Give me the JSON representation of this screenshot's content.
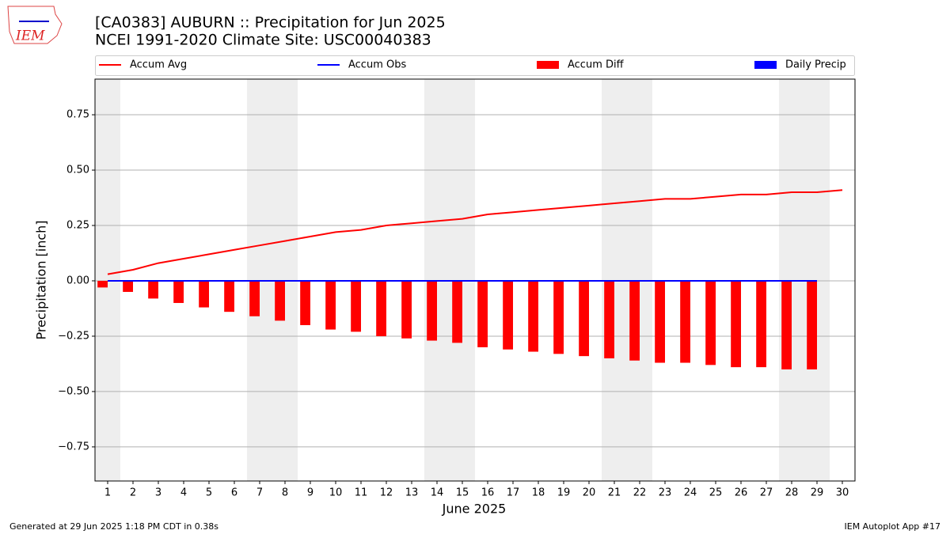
{
  "logo_text": "IEM",
  "footer_left": "Generated at 29 Jun 2025 1:18 PM CDT in 0.38s",
  "footer_right": "IEM Autoplot App #17",
  "chart_data": {
    "type": "bar",
    "title": "[CA0383] AUBURN :: Precipitation for Jun 2025",
    "subtitle": "NCEI 1991-2020 Climate Site: USC00040383",
    "x_label": "June 2025",
    "y_label": "Precipitation [inch]",
    "x": [
      1,
      2,
      3,
      4,
      5,
      6,
      7,
      8,
      9,
      10,
      11,
      12,
      13,
      14,
      15,
      16,
      17,
      18,
      19,
      20,
      21,
      22,
      23,
      24,
      25,
      26,
      27,
      28,
      29,
      30
    ],
    "xlim": [
      0.5,
      30.5
    ],
    "xticks": [
      1,
      2,
      3,
      4,
      5,
      6,
      7,
      8,
      9,
      10,
      11,
      12,
      13,
      14,
      15,
      16,
      17,
      18,
      19,
      20,
      21,
      22,
      23,
      24,
      25,
      26,
      27,
      28,
      29,
      30
    ],
    "ylim": [
      -0.904,
      0.911
    ],
    "yticks": [
      {
        "value": -0.75,
        "label": "−0.75"
      },
      {
        "value": -0.5,
        "label": "−0.50"
      },
      {
        "value": -0.25,
        "label": "−0.25"
      },
      {
        "value": 0,
        "label": "0.00"
      },
      {
        "value": 0.25,
        "label": "0.25"
      },
      {
        "value": 0.5,
        "label": "0.50"
      },
      {
        "value": 0.75,
        "label": "0.75"
      }
    ],
    "grid": true,
    "shaded_days": [
      1,
      7,
      8,
      14,
      15,
      21,
      22,
      28,
      29
    ],
    "series": [
      {
        "name": "Accum Avg",
        "type": "line",
        "color": "#ff0000",
        "values": [
          0.03,
          0.05,
          0.08,
          0.1,
          0.12,
          0.14,
          0.16,
          0.18,
          0.2,
          0.22,
          0.23,
          0.25,
          0.26,
          0.27,
          0.28,
          0.3,
          0.31,
          0.32,
          0.33,
          0.34,
          0.35,
          0.36,
          0.37,
          0.37,
          0.38,
          0.39,
          0.39,
          0.4,
          0.4,
          0.41
        ]
      },
      {
        "name": "Accum Obs",
        "type": "line",
        "color": "#0000ff",
        "values": [
          0,
          0,
          0,
          0,
          0,
          0,
          0,
          0,
          0,
          0,
          0,
          0,
          0,
          0,
          0,
          0,
          0,
          0,
          0,
          0,
          0,
          0,
          0,
          0,
          0,
          0,
          0,
          0,
          0,
          null
        ]
      },
      {
        "name": "Accum Diff",
        "type": "bar",
        "color": "#ff0000",
        "values": [
          -0.03,
          -0.05,
          -0.08,
          -0.1,
          -0.12,
          -0.14,
          -0.16,
          -0.18,
          -0.2,
          -0.22,
          -0.23,
          -0.25,
          -0.26,
          -0.27,
          -0.28,
          -0.3,
          -0.31,
          -0.32,
          -0.33,
          -0.34,
          -0.35,
          -0.36,
          -0.37,
          -0.37,
          -0.38,
          -0.39,
          -0.39,
          -0.4,
          -0.4,
          null
        ]
      },
      {
        "name": "Daily Precip",
        "type": "bar",
        "color": "#0000ff",
        "values": [
          0,
          0,
          0,
          0,
          0,
          0,
          0,
          0,
          0,
          0,
          0,
          0,
          0,
          0,
          0,
          0,
          0,
          0,
          0,
          0,
          0,
          0,
          0,
          0,
          0,
          0,
          0,
          0,
          0,
          null
        ]
      }
    ]
  }
}
